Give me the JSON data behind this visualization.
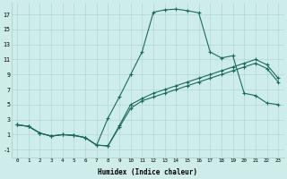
{
  "xlabel": "Humidex (Indice chaleur)",
  "bg_color": "#ceecea",
  "grid_color": "#b0d8d4",
  "line_color": "#1a6b5e",
  "xlim": [
    -0.5,
    23.5
  ],
  "ylim": [
    -2.0,
    18.5
  ],
  "xticks": [
    0,
    1,
    2,
    3,
    4,
    5,
    6,
    7,
    8,
    9,
    10,
    11,
    12,
    13,
    14,
    15,
    16,
    17,
    18,
    19,
    20,
    21,
    22,
    23
  ],
  "yticks": [
    -1,
    1,
    3,
    5,
    7,
    9,
    11,
    13,
    15,
    17
  ],
  "line1_x": [
    0,
    1,
    2,
    3,
    4,
    5,
    6,
    7,
    8,
    9,
    10,
    11,
    12,
    13,
    14,
    15,
    16,
    17,
    18,
    19,
    20,
    21,
    22,
    23
  ],
  "line1_y": [
    2.3,
    2.1,
    1.2,
    0.8,
    1.0,
    0.9,
    0.6,
    -0.4,
    3.2,
    6.0,
    9.0,
    12.0,
    17.3,
    17.6,
    17.7,
    17.5,
    17.2,
    12.0,
    11.2,
    11.5,
    6.5,
    6.2,
    5.2,
    5.0
  ],
  "line2_x": [
    0,
    1,
    2,
    3,
    4,
    5,
    6,
    7,
    8,
    9,
    10,
    11,
    12,
    13,
    14,
    15,
    16,
    17,
    18,
    19,
    20,
    21,
    22,
    23
  ],
  "line2_y": [
    2.3,
    2.1,
    1.2,
    0.8,
    1.0,
    0.9,
    0.6,
    -0.4,
    -0.5,
    2.2,
    5.0,
    5.8,
    6.5,
    7.0,
    7.5,
    8.0,
    8.5,
    9.0,
    9.5,
    10.0,
    10.5,
    11.0,
    10.3,
    8.5
  ],
  "line3_x": [
    0,
    1,
    2,
    3,
    4,
    5,
    6,
    7,
    8,
    9,
    10,
    11,
    12,
    13,
    14,
    15,
    16,
    17,
    18,
    19,
    20,
    21,
    22,
    23
  ],
  "line3_y": [
    2.3,
    2.1,
    1.2,
    0.8,
    1.0,
    0.9,
    0.6,
    -0.4,
    -0.5,
    2.0,
    4.5,
    5.5,
    6.0,
    6.5,
    7.0,
    7.5,
    8.0,
    8.5,
    9.0,
    9.5,
    10.0,
    10.5,
    9.8,
    8.0
  ]
}
